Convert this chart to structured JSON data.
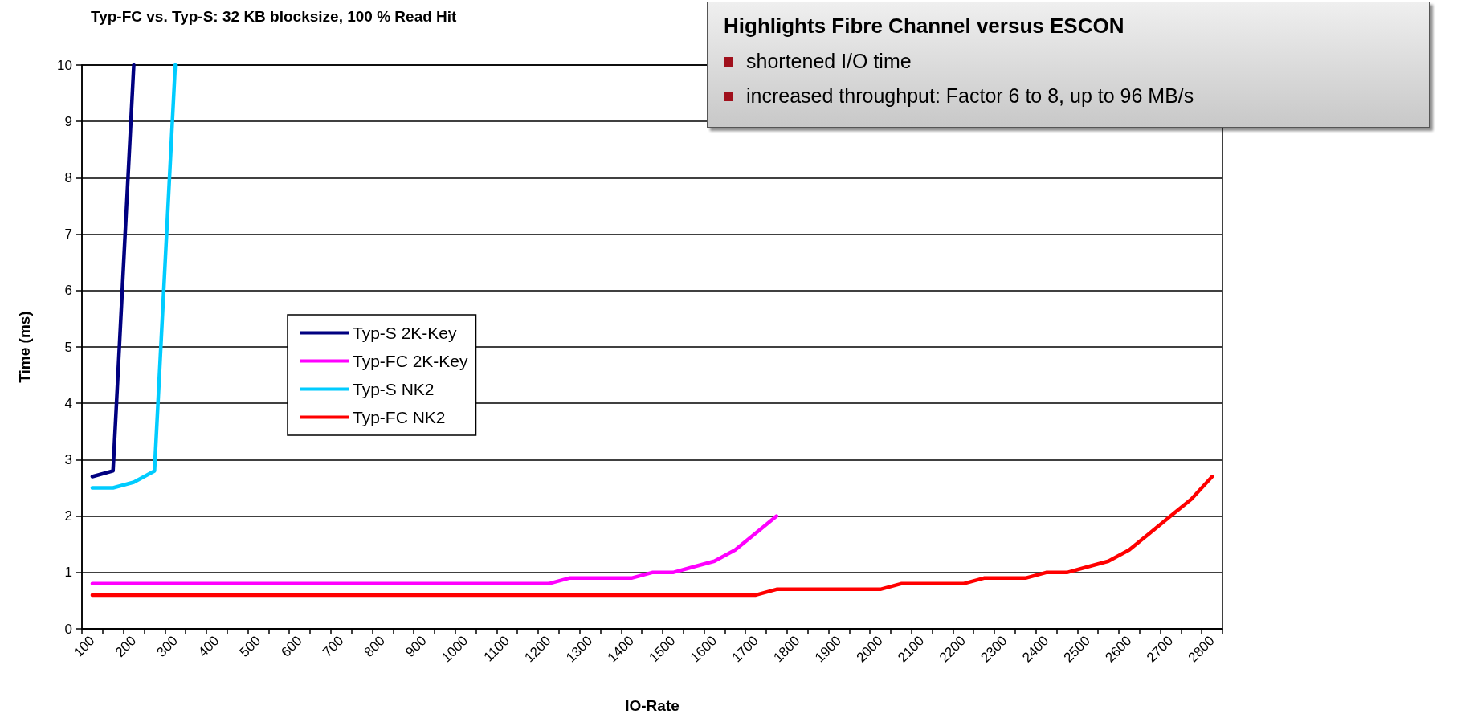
{
  "chart_data": {
    "type": "line",
    "title": "Typ-FC vs. Typ-S: 32 KB blocksize, 100 % Read Hit",
    "xlabel": "IO-Rate",
    "ylabel": "Time (ms)",
    "annotations": [
      "Highlights Fibre Channel versus ESCON",
      "shortened I/O time",
      "increased throughput: Factor 6 to 8, up to 96 MB/s"
    ],
    "categories": [
      "100",
      null,
      "200",
      null,
      "300",
      null,
      "400",
      null,
      "500",
      null,
      "600",
      null,
      "700",
      null,
      "800",
      null,
      "900",
      null,
      "1000",
      null,
      "1100",
      null,
      "1200",
      null,
      "1300",
      null,
      "1400",
      null,
      "1500",
      null,
      "1600",
      null,
      "1700",
      null,
      "1800",
      null,
      "1900",
      null,
      "2000",
      null,
      "2100",
      null,
      "2200",
      null,
      "2300",
      null,
      "2400",
      null,
      "2500",
      null,
      "2600",
      null,
      "2700",
      null,
      "2800"
    ],
    "series": [
      {
        "name": "Typ-S 2K-Key",
        "color": "#000080",
        "values": [
          2.7,
          2.8,
          10,
          null,
          null,
          null,
          null,
          null,
          null,
          null,
          null,
          null,
          null,
          null,
          null,
          null,
          null,
          null,
          null,
          null,
          null,
          null,
          null,
          null,
          null,
          null,
          null,
          null,
          null,
          null,
          null,
          null,
          null,
          null,
          null,
          null,
          null,
          null,
          null,
          null,
          null,
          null,
          null,
          null,
          null,
          null,
          null,
          null,
          null,
          null,
          null,
          null,
          null,
          null,
          null
        ]
      },
      {
        "name": "Typ-FC 2K-Key",
        "color": "#ff00ff",
        "values": [
          0.8,
          0.8,
          0.8,
          0.8,
          0.8,
          0.8,
          0.8,
          0.8,
          0.8,
          0.8,
          0.8,
          0.8,
          0.8,
          0.8,
          0.8,
          0.8,
          0.8,
          0.8,
          0.8,
          0.8,
          0.8,
          0.8,
          0.8,
          0.9,
          0.9,
          0.9,
          0.9,
          1.0,
          1.0,
          1.1,
          1.2,
          1.4,
          1.7,
          2.0,
          null,
          null,
          null,
          null,
          null,
          null,
          null,
          null,
          null,
          null,
          null,
          null,
          null,
          null,
          null,
          null,
          null,
          null,
          null,
          null,
          null
        ]
      },
      {
        "name": "Typ-S NK2",
        "color": "#00ccff",
        "values": [
          2.5,
          2.5,
          2.6,
          2.8,
          10,
          null,
          null,
          null,
          null,
          null,
          null,
          null,
          null,
          null,
          null,
          null,
          null,
          null,
          null,
          null,
          null,
          null,
          null,
          null,
          null,
          null,
          null,
          null,
          null,
          null,
          null,
          null,
          null,
          null,
          null,
          null,
          null,
          null,
          null,
          null,
          null,
          null,
          null,
          null,
          null,
          null,
          null,
          null,
          null,
          null,
          null,
          null,
          null,
          null,
          null
        ]
      },
      {
        "name": "Typ-FC NK2",
        "color": "#ff0000",
        "values": [
          0.6,
          0.6,
          0.6,
          0.6,
          0.6,
          0.6,
          0.6,
          0.6,
          0.6,
          0.6,
          0.6,
          0.6,
          0.6,
          0.6,
          0.6,
          0.6,
          0.6,
          0.6,
          0.6,
          0.6,
          0.6,
          0.6,
          0.6,
          0.6,
          0.6,
          0.6,
          0.6,
          0.6,
          0.6,
          0.6,
          0.6,
          0.6,
          0.6,
          0.7,
          0.7,
          0.7,
          0.7,
          0.7,
          0.7,
          0.8,
          0.8,
          0.8,
          0.8,
          0.9,
          0.9,
          0.9,
          1.0,
          1.0,
          1.1,
          1.2,
          1.4,
          1.7,
          2.0,
          2.3,
          2.7
        ]
      }
    ],
    "ylim": [
      0,
      10
    ],
    "yticks": [
      0,
      1,
      2,
      3,
      4,
      5,
      6,
      7,
      8,
      9,
      10
    ],
    "grid": "y",
    "legend": "left",
    "marker": "none",
    "line_style": "solid"
  }
}
